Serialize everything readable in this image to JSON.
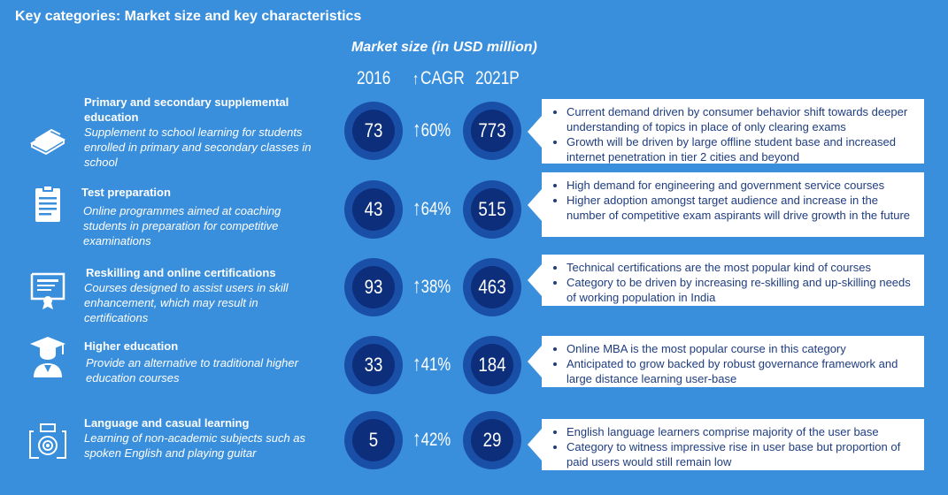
{
  "title": "Key categories: Market size and key characteristics",
  "market_title": "Market size (in USD million)",
  "columns": {
    "y2016": "2016",
    "cagr": "CAGR",
    "y2021": "2021P"
  },
  "categories": [
    {
      "title": "Primary and secondary supplemental education",
      "description": "Supplement to school learning for students enrolled in primary and secondary classes in school",
      "icon": "books-icon",
      "v2016": "73",
      "cagr": "60%",
      "v2021": "773",
      "points": [
        "Current demand driven by consumer behavior shift towards deeper understanding of topics in place of only clearing exams",
        "Growth will be driven by large offline student base and increased internet penetration in tier 2 cities and beyond"
      ]
    },
    {
      "title": "Test preparation",
      "description": "Online programmes aimed at coaching students in preparation for competitive examinations",
      "icon": "clipboard-icon",
      "v2016": "43",
      "cagr": "64%",
      "v2021": "515",
      "points": [
        "High demand for engineering and government service courses",
        "Higher adoption amongst target audience and increase in the number of competitive exam aspirants will drive growth in the future"
      ]
    },
    {
      "title": "Reskilling and online certifications",
      "description": "Courses designed to assist users in skill enhancement, which may result in certifications",
      "icon": "certificate-icon",
      "v2016": "93",
      "cagr": "38%",
      "v2021": "463",
      "points": [
        "Technical certifications are the most popular kind of courses",
        "Category to be driven by increasing re-skilling and up-skilling needs of working population in India"
      ]
    },
    {
      "title": "Higher education",
      "description": "Provide an alternative to traditional higher education courses",
      "icon": "graduate-icon",
      "v2016": "33",
      "cagr": "41%",
      "v2021": "184",
      "points": [
        "Online MBA is the most popular course in this category",
        "Anticipated to grow backed by robust governance framework and large distance learning user-base"
      ]
    },
    {
      "title": "Language and casual learning",
      "description": "Learning of non-academic subjects such as spoken English and playing guitar",
      "icon": "camera-icon",
      "v2016": "5",
      "cagr": "42%",
      "v2021": "29",
      "points": [
        "English language learners comprise majority of the user base",
        "Category to witness impressive rise in user base but proportion of paid users would still remain low"
      ]
    }
  ],
  "colors": {
    "background": "#3a8fdc",
    "circle_outer": "#1a4fa8",
    "circle_inner": "#0d2e7a",
    "box_text": "#1f3d80"
  }
}
